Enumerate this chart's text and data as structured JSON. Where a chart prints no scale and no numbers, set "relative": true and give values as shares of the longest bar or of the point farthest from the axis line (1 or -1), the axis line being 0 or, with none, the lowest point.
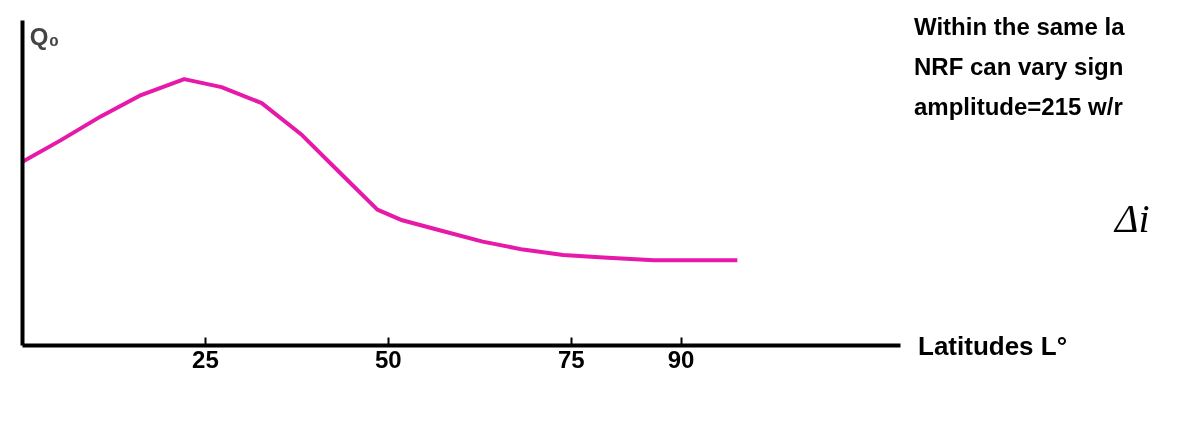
{
  "chart_data": {
    "type": "line",
    "relative": true,
    "ylabel": "Q₀",
    "xlabel": "Latitudes L°",
    "x": [
      0,
      5.2,
      10.7,
      16.2,
      22.1,
      27.2,
      32.7,
      38.2,
      43.7,
      48.5,
      51.9,
      57.4,
      62.9,
      68.4,
      73.9,
      79.4,
      86.3,
      97.7
    ],
    "series": [
      {
        "color": "#e619a8",
        "values": [
          0.69,
          0.77,
          0.86,
          0.94,
          1.0,
          0.97,
          0.91,
          0.79,
          0.64,
          0.51,
          0.47,
          0.43,
          0.39,
          0.36,
          0.34,
          0.33,
          0.32,
          0.32
        ]
      }
    ],
    "xlim": [
      0,
      120
    ],
    "xticks": [
      25,
      50,
      75,
      90
    ],
    "grid": false,
    "marker": "none",
    "line_style": "solid",
    "annotations": [
      "Within the same la",
      "NRF can vary sign",
      "amplitude=215 w/r",
      "Δi"
    ]
  }
}
